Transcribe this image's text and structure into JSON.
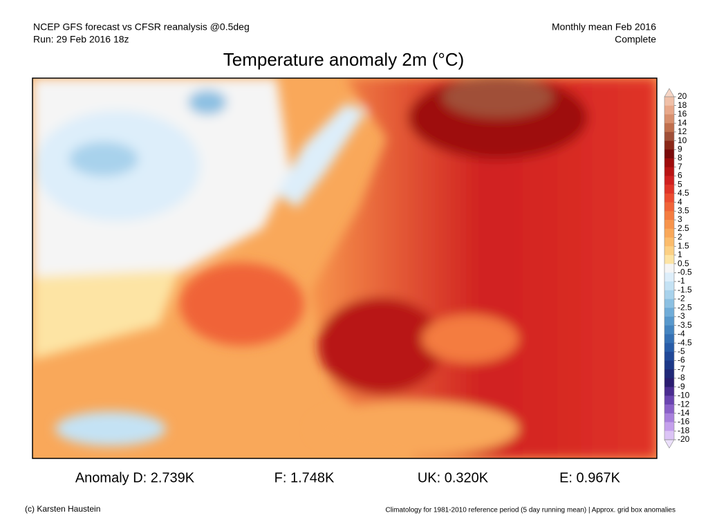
{
  "header": {
    "left": [
      "NCEP GFS forecast vs CFSR reanalysis @0.5deg",
      "Run: 29 Feb 2016 18z"
    ],
    "right": [
      "Monthly mean Feb 2016",
      "Complete"
    ]
  },
  "title": "Temperature anomaly 2m (°C)",
  "colorbar": {
    "labels": [
      20,
      18,
      16,
      14,
      12,
      10,
      9,
      8,
      7,
      6,
      5,
      4.5,
      4,
      3.5,
      3,
      2.5,
      2,
      1.5,
      1,
      0.5,
      -0.5,
      -1,
      -1.5,
      -2,
      -2.5,
      -3,
      -3.5,
      -4,
      -4.5,
      -5,
      -6,
      -7,
      -8,
      -9,
      -10,
      -12,
      -14,
      -16,
      -18,
      -20
    ],
    "colors": [
      "#f6d5c5",
      "#f0c0a8",
      "#e8a88a",
      "#d8906e",
      "#c0704e",
      "#a05038",
      "#8a2818",
      "#7a0a0a",
      "#9e0c0c",
      "#b81414",
      "#d02020",
      "#e03428",
      "#ec4c30",
      "#f06438",
      "#f47c40",
      "#f7944c",
      "#f9a85a",
      "#fbbc6c",
      "#fcd084",
      "#fde4a4",
      "#f5f5f5",
      "#ddeefa",
      "#c4e2f4",
      "#a8d2ec",
      "#8cc0e2",
      "#70acd8",
      "#5898cc",
      "#4484c0",
      "#3470b4",
      "#285ca8",
      "#204898",
      "#1c3888",
      "#202878",
      "#2a1c70",
      "#4a2c90",
      "#6a44b0",
      "#8a60c8",
      "#a880dc",
      "#c4a0ec",
      "#dcc4f6",
      "#ece0fc"
    ]
  },
  "stats": [
    "Anomaly D: 2.739K",
    "F: 1.748K",
    "UK: 0.320K",
    "E: 0.967K"
  ],
  "footer": {
    "left": "(c) Karsten Haustein",
    "right": "Climatology for 1981-2010 reference period (5 day running mean) | Approx. grid box anomalies"
  }
}
